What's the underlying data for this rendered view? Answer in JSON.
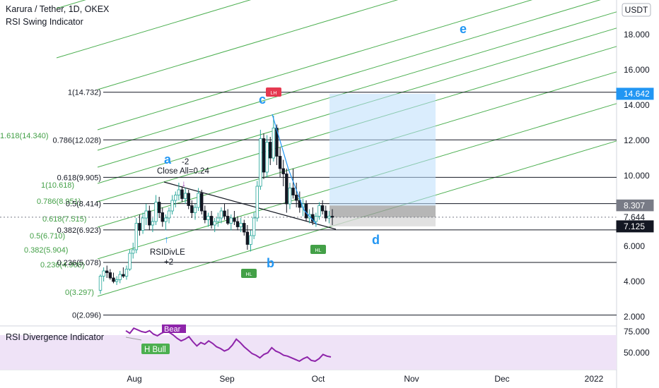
{
  "header": {
    "symbol_title": "Karura / Tether, 1D, OKEX",
    "indicator_title": "RSI Swing Indicator"
  },
  "currency_badge": "USDT",
  "rsi_panel": {
    "title": "RSI Divergence Indicator",
    "bear_label": "Bear",
    "bull_label": "H Bull",
    "ticks": [
      "75.000",
      "50.000"
    ],
    "fill_color": "#efe3f7",
    "line_color": "#8e24aa"
  },
  "chart_data": {
    "type": "candlestick",
    "x_ticks": [
      "Aug",
      "Sep",
      "Oct",
      "Nov",
      "Dec",
      "2022"
    ],
    "y_ticks": [
      "2.000",
      "4.000",
      "6.000",
      "8.000",
      "10.000",
      "12.000",
      "14.000",
      "16.000",
      "18.000"
    ],
    "ylim": [
      1.6,
      20.6
    ],
    "price_tags": [
      {
        "label": "14.642",
        "value": 14.642,
        "bg": "#2196f3",
        "fg": "#ffffff"
      },
      {
        "label": "8.307",
        "value": 8.307,
        "bg": "#787b86",
        "fg": "#ffffff"
      },
      {
        "label": "7.644",
        "value": 7.644,
        "bg": "#ffffff",
        "fg": "#131722"
      },
      {
        "label": "7.125",
        "value": 7.125,
        "bg": "#131722",
        "fg": "#ffffff"
      }
    ],
    "fib_levels_right": [
      {
        "label": "1(14.732)",
        "value": 14.732
      },
      {
        "label": "0.786(12.028)",
        "value": 12.028
      },
      {
        "label": "0.618(9.905)",
        "value": 9.905
      },
      {
        "label": "0.5(8.414)",
        "value": 8.414
      },
      {
        "label": "0.382(6.923)",
        "value": 6.923
      },
      {
        "label": "0.236(5.078)",
        "value": 5.078
      },
      {
        "label": "0(2.096)",
        "value": 2.096
      }
    ],
    "fib_channel_labels": [
      "1.618(14.340)",
      "1(10.618)",
      "0.786(8.951)",
      "0.618(7.515)",
      "0.5(6.710)",
      "0.382(5.904)",
      "0.236(4.908)",
      "0(3.297)"
    ],
    "wave_labels": [
      "a",
      "b",
      "c",
      "d",
      "e"
    ],
    "annotations": {
      "minus2": "-2",
      "close_all": "Close All=0.24",
      "rsidivle": "RSIDivLE",
      "plus2": "+2",
      "hl": "HL",
      "lh": "LH"
    },
    "colors": {
      "channel": "#4caf50",
      "fib_line": "#131722",
      "target_box": "#bbdefb",
      "stop_box": "#9e9e9e",
      "wave": "#2196f3"
    },
    "candles": [
      [
        3.5,
        4.4,
        3.3,
        4.3
      ],
      [
        4.3,
        4.8,
        4.0,
        4.6
      ],
      [
        4.6,
        4.9,
        4.2,
        4.5
      ],
      [
        4.5,
        4.7,
        4.1,
        4.2
      ],
      [
        4.2,
        4.5,
        3.9,
        4.0
      ],
      [
        4.0,
        4.3,
        3.8,
        4.1
      ],
      [
        4.1,
        4.6,
        3.9,
        4.4
      ],
      [
        4.4,
        4.8,
        4.2,
        4.3
      ],
      [
        4.3,
        4.9,
        4.1,
        4.7
      ],
      [
        4.7,
        5.8,
        4.6,
        5.6
      ],
      [
        5.6,
        6.2,
        5.3,
        5.8
      ],
      [
        5.8,
        7.6,
        5.6,
        7.3
      ],
      [
        7.3,
        7.8,
        6.6,
        6.9
      ],
      [
        6.9,
        7.9,
        6.7,
        7.6
      ],
      [
        7.6,
        8.4,
        7.2,
        8.0
      ],
      [
        8.0,
        8.3,
        6.9,
        7.2
      ],
      [
        7.2,
        7.6,
        6.8,
        7.4
      ],
      [
        7.4,
        8.9,
        7.2,
        8.5
      ],
      [
        8.5,
        8.8,
        7.6,
        7.9
      ],
      [
        7.9,
        8.2,
        7.1,
        7.4
      ],
      [
        7.4,
        7.8,
        6.9,
        7.6
      ],
      [
        7.6,
        8.2,
        7.3,
        8.0
      ],
      [
        8.0,
        8.9,
        7.8,
        8.6
      ],
      [
        8.6,
        9.1,
        8.2,
        8.9
      ],
      [
        8.9,
        9.6,
        8.6,
        9.2
      ],
      [
        9.2,
        9.4,
        8.5,
        8.7
      ],
      [
        8.7,
        9.3,
        8.4,
        9.0
      ],
      [
        9.0,
        9.2,
        8.1,
        8.3
      ],
      [
        8.3,
        8.6,
        7.6,
        7.9
      ],
      [
        7.9,
        8.4,
        7.5,
        8.2
      ],
      [
        8.2,
        9.3,
        8.0,
        9.0
      ],
      [
        9.0,
        9.2,
        7.8,
        8.0
      ],
      [
        8.0,
        8.3,
        7.3,
        7.5
      ],
      [
        7.5,
        7.9,
        7.1,
        7.7
      ],
      [
        7.7,
        8.0,
        7.0,
        7.2
      ],
      [
        7.2,
        7.6,
        6.8,
        7.4
      ],
      [
        7.4,
        7.9,
        7.1,
        7.6
      ],
      [
        7.6,
        8.2,
        7.3,
        8.0
      ],
      [
        8.0,
        8.4,
        7.5,
        7.7
      ],
      [
        7.7,
        8.1,
        7.2,
        7.3
      ],
      [
        7.3,
        7.8,
        6.9,
        7.6
      ],
      [
        7.6,
        8.0,
        7.2,
        7.4
      ],
      [
        7.4,
        7.7,
        6.9,
        7.1
      ],
      [
        7.1,
        7.6,
        6.8,
        7.3
      ],
      [
        7.3,
        7.5,
        6.6,
        6.8
      ],
      [
        6.8,
        7.2,
        5.8,
        6.1
      ],
      [
        6.1,
        6.9,
        5.7,
        6.6
      ],
      [
        6.6,
        7.9,
        6.4,
        7.6
      ],
      [
        7.6,
        9.7,
        7.4,
        9.4
      ],
      [
        9.4,
        12.6,
        9.2,
        12.1
      ],
      [
        12.1,
        12.4,
        9.8,
        10.2
      ],
      [
        10.2,
        12.3,
        9.9,
        11.9
      ],
      [
        11.9,
        12.2,
        10.6,
        11.0
      ],
      [
        11.0,
        13.4,
        10.8,
        12.7
      ],
      [
        12.7,
        12.9,
        10.6,
        11.1
      ],
      [
        11.1,
        11.6,
        9.9,
        10.4
      ],
      [
        10.4,
        10.9,
        9.4,
        10.1
      ],
      [
        10.1,
        10.4,
        7.9,
        8.4
      ],
      [
        8.4,
        9.6,
        8.1,
        9.3
      ],
      [
        9.3,
        10.4,
        8.7,
        8.9
      ],
      [
        8.9,
        9.6,
        8.2,
        8.6
      ],
      [
        8.6,
        9.1,
        7.9,
        8.2
      ],
      [
        8.2,
        8.7,
        7.7,
        8.4
      ],
      [
        8.4,
        8.6,
        7.4,
        7.6
      ],
      [
        7.6,
        8.1,
        7.3,
        7.8
      ],
      [
        7.8,
        8.2,
        7.2,
        7.4
      ],
      [
        7.4,
        7.9,
        7.1,
        7.7
      ],
      [
        7.7,
        8.5,
        7.5,
        8.3
      ],
      [
        8.3,
        8.6,
        7.8,
        8.0
      ],
      [
        8.0,
        8.3,
        7.4,
        7.6
      ],
      [
        7.6,
        8.0,
        7.3,
        7.7
      ],
      [
        7.7,
        8.1,
        7.2,
        7.64
      ]
    ],
    "rsi_values": [
      76,
      73,
      79,
      77,
      75,
      74,
      76,
      72,
      70,
      73,
      75,
      74,
      71,
      67,
      64,
      66,
      69,
      63,
      58,
      62,
      60,
      64,
      61,
      57,
      55,
      52,
      54,
      59,
      66,
      62,
      57,
      53,
      49,
      47,
      44,
      48,
      50,
      56,
      52,
      50,
      47,
      46,
      44,
      42,
      40,
      43,
      45,
      41,
      40,
      43,
      48,
      46,
      45
    ]
  }
}
